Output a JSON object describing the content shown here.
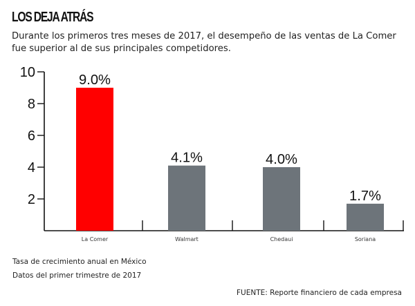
{
  "header": {
    "title": "LOS DEJA ATRÁS",
    "subtitle_line1": "Durante los primeros tres meses de 2017, el desempeño de las ventas de La Comer",
    "subtitle_line2": "fue superior al de sus principales competidores."
  },
  "notes": {
    "line1": "Tasa de crecimiento anual en México",
    "line2": "Datos del primer trimestre de 2017",
    "source": "FUENTE: Reporte financiero de cada empresa"
  },
  "chart_data": {
    "type": "bar",
    "title": "LOS DEJA ATRÁS",
    "xlabel": "",
    "ylabel": "",
    "categories": [
      "La Comer",
      "Walmart",
      "Chedaui",
      "Soriana"
    ],
    "values": [
      9.0,
      4.1,
      4.0,
      1.7
    ],
    "data_labels": [
      "9.0%",
      "4.1%",
      "4.0%",
      "1.7%"
    ],
    "ylim": [
      0,
      10
    ],
    "yticks": [
      2,
      4,
      6,
      8,
      10
    ],
    "ytick_labels": [
      "2",
      "4",
      "6",
      "8",
      "10"
    ],
    "grid": false,
    "colors": [
      "#ff0000",
      "#6d747a",
      "#6d747a",
      "#6d747a"
    ]
  }
}
